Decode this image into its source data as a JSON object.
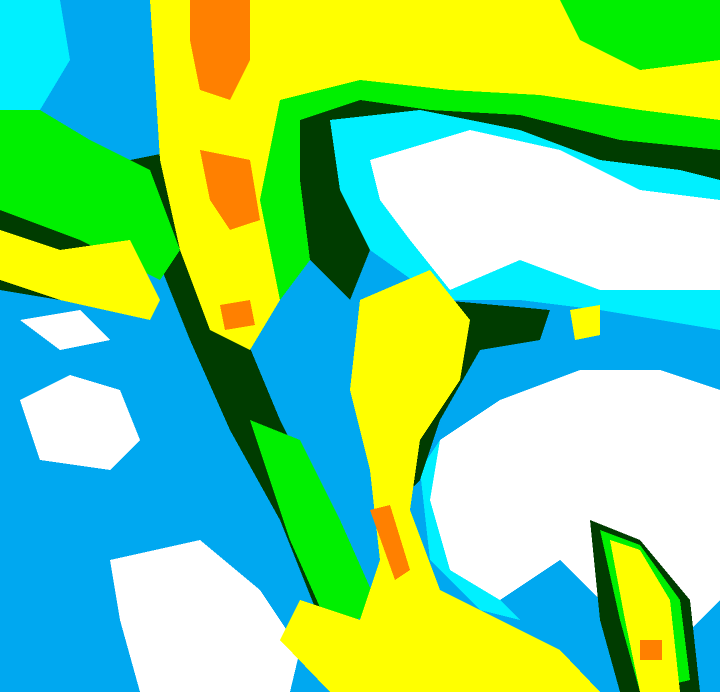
{
  "image": {
    "kind": "false-color satellite cloud imagery",
    "palette": {
      "background_blue": "#00a8f0",
      "cyan": "#00f0ff",
      "white": "#ffffff",
      "green": "#00f000",
      "dark_green": "#003c00",
      "yellow": "#ffff00",
      "orange": "#ff8000"
    }
  }
}
